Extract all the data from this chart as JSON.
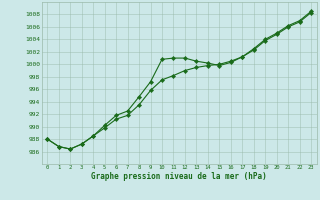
{
  "xlabel": "Graphe pression niveau de la mer (hPa)",
  "x": [
    0,
    1,
    2,
    3,
    4,
    5,
    6,
    7,
    8,
    9,
    10,
    11,
    12,
    13,
    14,
    15,
    16,
    17,
    18,
    19,
    20,
    21,
    22,
    23
  ],
  "series1": [
    988.0,
    986.8,
    986.4,
    987.2,
    988.5,
    990.2,
    991.8,
    992.5,
    994.8,
    997.2,
    1000.8,
    1001.0,
    1001.0,
    1000.5,
    1000.2,
    999.8,
    1000.3,
    1001.2,
    1002.5,
    1004.0,
    1005.0,
    1006.2,
    1007.0,
    1008.5
  ],
  "series2": [
    988.0,
    986.8,
    986.4,
    987.2,
    988.5,
    989.8,
    991.2,
    991.8,
    993.5,
    995.8,
    997.5,
    998.2,
    999.0,
    999.5,
    999.8,
    1000.0,
    1000.5,
    1001.2,
    1002.3,
    1003.8,
    1004.8,
    1006.0,
    1006.8,
    1008.3
  ],
  "ylim_min": 984,
  "ylim_max": 1010,
  "yticks": [
    986,
    988,
    990,
    992,
    994,
    996,
    998,
    1000,
    1002,
    1004,
    1006,
    1008
  ],
  "xticks": [
    0,
    1,
    2,
    3,
    4,
    5,
    6,
    7,
    8,
    9,
    10,
    11,
    12,
    13,
    14,
    15,
    16,
    17,
    18,
    19,
    20,
    21,
    22,
    23
  ],
  "line_color": "#1a6b1a",
  "bg_color": "#cce8e8",
  "grid_color": "#9abaaa",
  "text_color": "#1a6b1a",
  "figsize": [
    3.2,
    2.0
  ],
  "dpi": 100
}
